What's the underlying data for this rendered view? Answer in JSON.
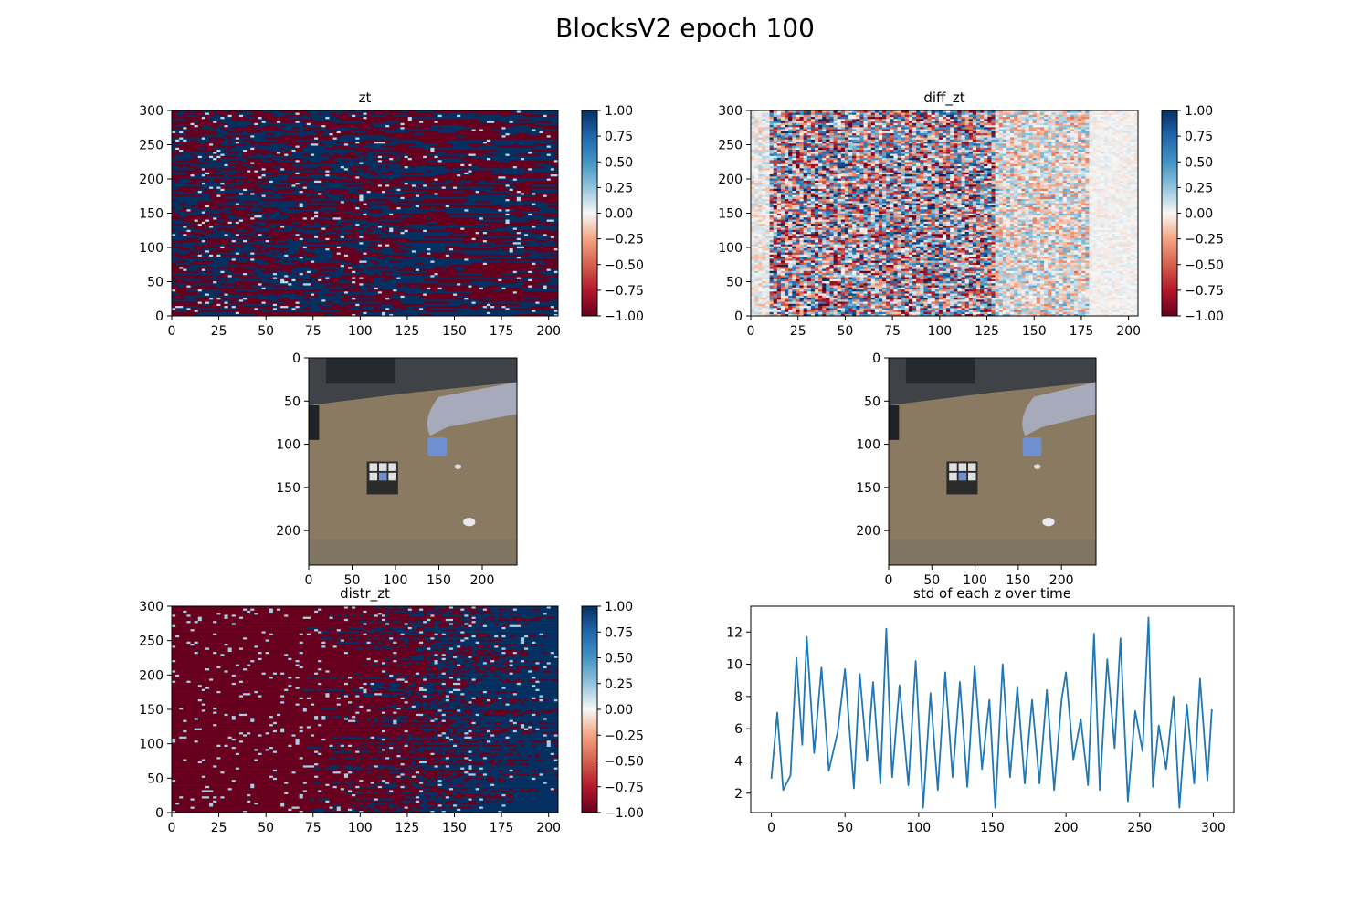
{
  "figure": {
    "title": "BlocksV2 epoch 100"
  },
  "colors": {
    "line": "#1f77b4",
    "cmap_neg": "#67001f",
    "cmap_mid": "#f7f7f7",
    "cmap_pos": "#053061",
    "image_bg": "#8a7d66"
  },
  "chart_data": [
    {
      "id": "zt",
      "type": "heatmap",
      "title": "zt",
      "xlabel": "",
      "ylabel": "",
      "colormap": "RdBu",
      "xlim": [
        0,
        205
      ],
      "ylim": [
        0,
        300
      ],
      "x_ticks": [
        "0",
        "25",
        "50",
        "75",
        "100",
        "125",
        "150",
        "175",
        "200"
      ],
      "y_ticks": [
        "0",
        "50",
        "100",
        "150",
        "200",
        "250",
        "300"
      ],
      "colorbar": {
        "vmin": -1.0,
        "vmax": 1.0,
        "ticks": [
          "1.00",
          "0.75",
          "0.50",
          "0.25",
          "0.00",
          "−0.25",
          "−0.50",
          "−0.75",
          "−1.00"
        ]
      }
    },
    {
      "id": "diff_zt",
      "type": "heatmap",
      "title": "diff_zt",
      "xlabel": "",
      "ylabel": "",
      "colormap": "RdBu",
      "xlim": [
        0,
        205
      ],
      "ylim": [
        0,
        300
      ],
      "x_ticks": [
        "0",
        "25",
        "50",
        "75",
        "100",
        "125",
        "150",
        "175",
        "200"
      ],
      "y_ticks": [
        "0",
        "50",
        "100",
        "150",
        "200",
        "250",
        "300"
      ],
      "colorbar": {
        "vmin": -1.0,
        "vmax": 1.0,
        "ticks": [
          "1.00",
          "0.75",
          "0.50",
          "0.25",
          "0.00",
          "−0.25",
          "−0.50",
          "−0.75",
          "−1.00"
        ]
      }
    },
    {
      "id": "frame_left",
      "type": "image",
      "title": "",
      "xlim": [
        0,
        240
      ],
      "ylim": [
        0,
        240
      ],
      "x_ticks": [
        "0",
        "50",
        "100",
        "150",
        "200"
      ],
      "y_ticks": [
        "0",
        "50",
        "100",
        "150",
        "200"
      ]
    },
    {
      "id": "frame_right",
      "type": "image",
      "title": "",
      "xlim": [
        0,
        240
      ],
      "ylim": [
        0,
        240
      ],
      "x_ticks": [
        "0",
        "50",
        "100",
        "150",
        "200"
      ],
      "y_ticks": [
        "0",
        "50",
        "100",
        "150",
        "200"
      ]
    },
    {
      "id": "distr_zt",
      "type": "heatmap",
      "title": "distr_zt",
      "xlabel": "",
      "ylabel": "",
      "colormap": "RdBu",
      "xlim": [
        0,
        205
      ],
      "ylim": [
        0,
        300
      ],
      "x_ticks": [
        "0",
        "25",
        "50",
        "75",
        "100",
        "125",
        "150",
        "175",
        "200"
      ],
      "y_ticks": [
        "0",
        "50",
        "100",
        "150",
        "200",
        "250",
        "300"
      ],
      "colorbar": {
        "vmin": -1.0,
        "vmax": 1.0,
        "ticks": [
          "1.00",
          "0.75",
          "0.50",
          "0.25",
          "0.00",
          "−0.25",
          "−0.50",
          "−0.75",
          "−1.00"
        ]
      }
    },
    {
      "id": "std_line",
      "type": "line",
      "title": "std of each z over time",
      "xlabel": "",
      "ylabel": "",
      "xlim": [
        -14,
        314
      ],
      "ylim": [
        0.8,
        13.6
      ],
      "grid": false,
      "x_ticks": [
        "0",
        "50",
        "100",
        "150",
        "200",
        "250",
        "300"
      ],
      "y_ticks": [
        "2",
        "4",
        "6",
        "8",
        "10",
        "12"
      ],
      "series": [
        {
          "x": [
            0,
            4,
            8,
            13,
            17,
            21,
            24,
            29,
            34,
            39,
            45,
            50,
            56,
            60,
            65,
            69,
            74,
            78,
            82,
            87,
            93,
            98,
            103,
            108,
            113,
            118,
            123,
            128,
            133,
            138,
            143,
            148,
            152,
            157,
            162,
            167,
            172,
            177,
            182,
            187,
            192,
            197,
            200,
            205,
            210,
            215,
            219,
            223,
            228,
            233,
            237,
            242,
            247,
            252,
            256,
            259,
            263,
            268,
            273,
            277,
            282,
            287,
            291,
            296,
            299
          ],
          "y": [
            2.9,
            7.0,
            2.2,
            3.1,
            10.4,
            5.0,
            11.7,
            4.5,
            9.8,
            3.4,
            5.8,
            9.7,
            2.3,
            9.4,
            4.0,
            8.9,
            2.6,
            12.2,
            3.0,
            8.7,
            2.5,
            10.2,
            1.1,
            8.2,
            2.2,
            9.5,
            3.0,
            8.9,
            2.4,
            9.9,
            3.5,
            7.8,
            1.1,
            10.0,
            3.0,
            8.6,
            2.6,
            7.8,
            2.6,
            8.4,
            2.2,
            7.8,
            9.5,
            4.1,
            6.6,
            2.5,
            11.9,
            2.2,
            10.3,
            4.8,
            11.6,
            1.5,
            7.1,
            4.6,
            12.9,
            2.4,
            6.2,
            3.5,
            8.0,
            1.1,
            7.5,
            2.6,
            9.1,
            2.8,
            7.2
          ]
        }
      ]
    }
  ]
}
